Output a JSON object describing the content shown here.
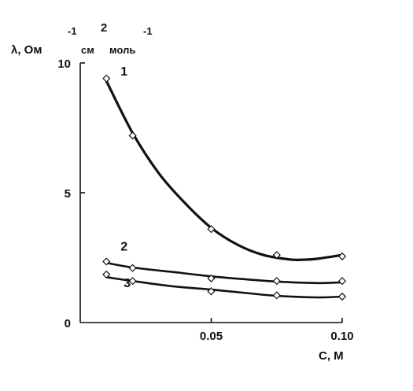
{
  "chart_data": {
    "type": "line",
    "ylabel": "λ, Ом⁻¹ см² моль⁻¹",
    "ylabel_parts": {
      "main": "λ, Ом",
      "sup1": "-1",
      "mid1": "см",
      "sup2": "2",
      "mid2": "моль",
      "sup3": "-1"
    },
    "xlabel": "C, M",
    "xlim": [
      0,
      0.1
    ],
    "ylim": [
      0,
      10
    ],
    "x_ticks": [
      0.05,
      0.1
    ],
    "x_tick_labels": [
      "0.05",
      "0.10"
    ],
    "y_ticks": [
      0,
      5,
      10
    ],
    "y_tick_labels": [
      "0",
      "5",
      "10"
    ],
    "grid": false,
    "legend": "none",
    "series": [
      {
        "name": "1",
        "marker_x": [
          0.01,
          0.02,
          0.05,
          0.075,
          0.1
        ],
        "marker_y": [
          9.4,
          7.2,
          3.6,
          2.6,
          2.55
        ],
        "curve_x": [
          0.01,
          0.02,
          0.03,
          0.04,
          0.05,
          0.06,
          0.07,
          0.08,
          0.085,
          0.09,
          0.1
        ],
        "curve_y": [
          9.3,
          7.3,
          5.75,
          4.6,
          3.65,
          3.0,
          2.6,
          2.43,
          2.42,
          2.45,
          2.6
        ]
      },
      {
        "name": "2",
        "marker_x": [
          0.01,
          0.02,
          0.05,
          0.075,
          0.1
        ],
        "marker_y": [
          2.35,
          2.1,
          1.7,
          1.6,
          1.6
        ],
        "curve_x": [
          0.01,
          0.02,
          0.035,
          0.05,
          0.065,
          0.075,
          0.09,
          0.1
        ],
        "curve_y": [
          2.3,
          2.12,
          1.95,
          1.78,
          1.65,
          1.58,
          1.52,
          1.55
        ]
      },
      {
        "name": "3",
        "marker_x": [
          0.01,
          0.02,
          0.05,
          0.075,
          0.1
        ],
        "marker_y": [
          1.85,
          1.6,
          1.2,
          1.05,
          1.0
        ],
        "curve_x": [
          0.01,
          0.02,
          0.035,
          0.05,
          0.065,
          0.075,
          0.09,
          0.1
        ],
        "curve_y": [
          1.75,
          1.6,
          1.4,
          1.27,
          1.12,
          1.03,
          0.97,
          1.0
        ]
      }
    ]
  }
}
